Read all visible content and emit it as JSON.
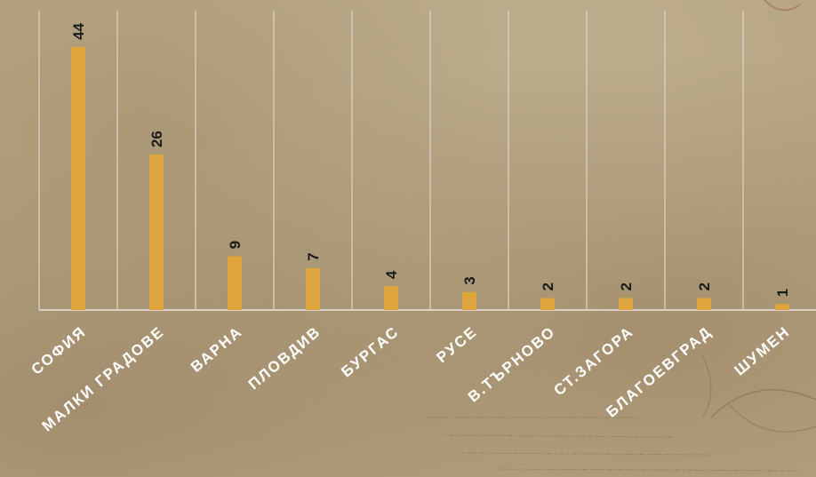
{
  "chart_data": {
    "type": "bar",
    "categories": [
      "СОФИЯ",
      "МАЛКИ ГРАДОВЕ",
      "ВАРНА",
      "ПЛОВДИВ",
      "БУРГАС",
      "РУСЕ",
      "В.ТЪРНОВО",
      "СТ.ЗАГОРА",
      "БЛАГОЕВГРАД",
      "ШУМЕН"
    ],
    "values": [
      44,
      26,
      9,
      7,
      4,
      3,
      2,
      2,
      2,
      1
    ],
    "title": "",
    "xlabel": "",
    "ylabel": "",
    "ylim": [
      0,
      50
    ],
    "grid": true,
    "legend": "none",
    "data_labels": true,
    "bar_color": "#e0a43c",
    "label_color": "#ffffff",
    "value_label_color": "#1a1a1a"
  }
}
